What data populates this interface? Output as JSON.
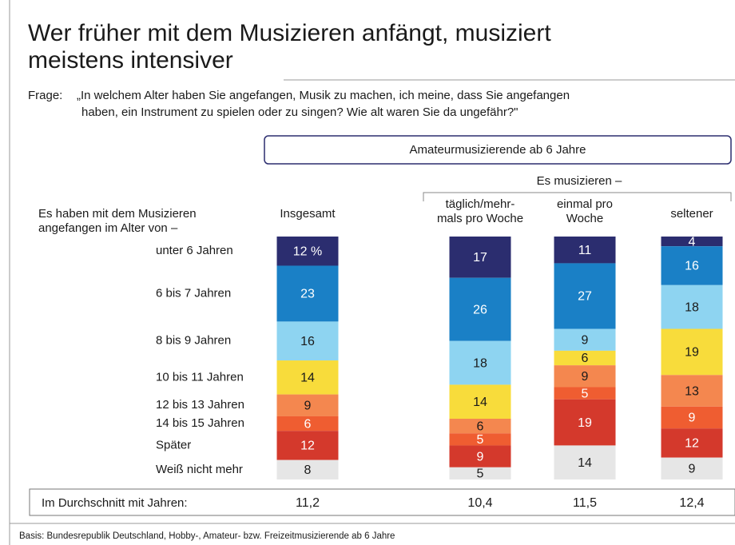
{
  "chart_data": {
    "type": "stacked-bar",
    "title": [
      "Wer früher mit dem Musizieren anfängt, musiziert",
      "meistens intensiver"
    ],
    "question_label": "Frage:",
    "question": [
      "„In welchem Alter haben Sie angefangen, Musik zu machen, ich meine, dass Sie angefangen",
      "haben, ein Instrument zu spielen oder zu singen? Wie alt waren Sie da ungefähr?\""
    ],
    "group_header": "Amateurmusizierende ab 6 Jahre",
    "subgroup_header": "Es musizieren –",
    "row_header": [
      "Es haben mit dem Musizieren",
      "angefangen im Alter von –"
    ],
    "categories": [
      [
        "Insgesamt"
      ],
      [
        "täglich/mehr-",
        "mals pro Woche"
      ],
      [
        "einmal pro",
        "Woche"
      ],
      [
        "seltener"
      ]
    ],
    "series": [
      {
        "name": "unter 6 Jahren",
        "color": "#2b2d6f",
        "values": [
          12,
          17,
          11,
          4
        ],
        "value_labels": [
          "12 %",
          "17",
          "11",
          "4"
        ]
      },
      {
        "name": "6 bis 7 Jahren",
        "color": "#1a80c6",
        "values": [
          23,
          26,
          27,
          16
        ]
      },
      {
        "name": "8 bis 9 Jahren",
        "color": "#8ed4f1",
        "values": [
          16,
          18,
          9,
          18
        ]
      },
      {
        "name": "10 bis 11 Jahren",
        "color": "#f8dc3b",
        "values": [
          14,
          14,
          6,
          19
        ]
      },
      {
        "name": "12 bis 13 Jahren",
        "color": "#f4874f",
        "values": [
          9,
          6,
          9,
          13
        ]
      },
      {
        "name": "14 bis 15 Jahren",
        "color": "#ef5d31",
        "values": [
          6,
          5,
          5,
          9
        ]
      },
      {
        "name": "Später",
        "color": "#d4392c",
        "values": [
          12,
          9,
          19,
          12
        ]
      },
      {
        "name": "Weiß nicht mehr",
        "color": "#e6e6e6",
        "values": [
          8,
          5,
          14,
          9
        ]
      }
    ],
    "average": {
      "label": "Im Durchschnitt mit Jahren:",
      "values": [
        11.2,
        10.4,
        11.5,
        12.4
      ],
      "value_labels": [
        "11,2",
        "10,4",
        "11,5",
        "12,4"
      ]
    },
    "source": "Basis: Bundesrepublik Deutschland, Hobby-, Amateur- bzw. Freizeitmusizierende ab 6 Jahre"
  }
}
